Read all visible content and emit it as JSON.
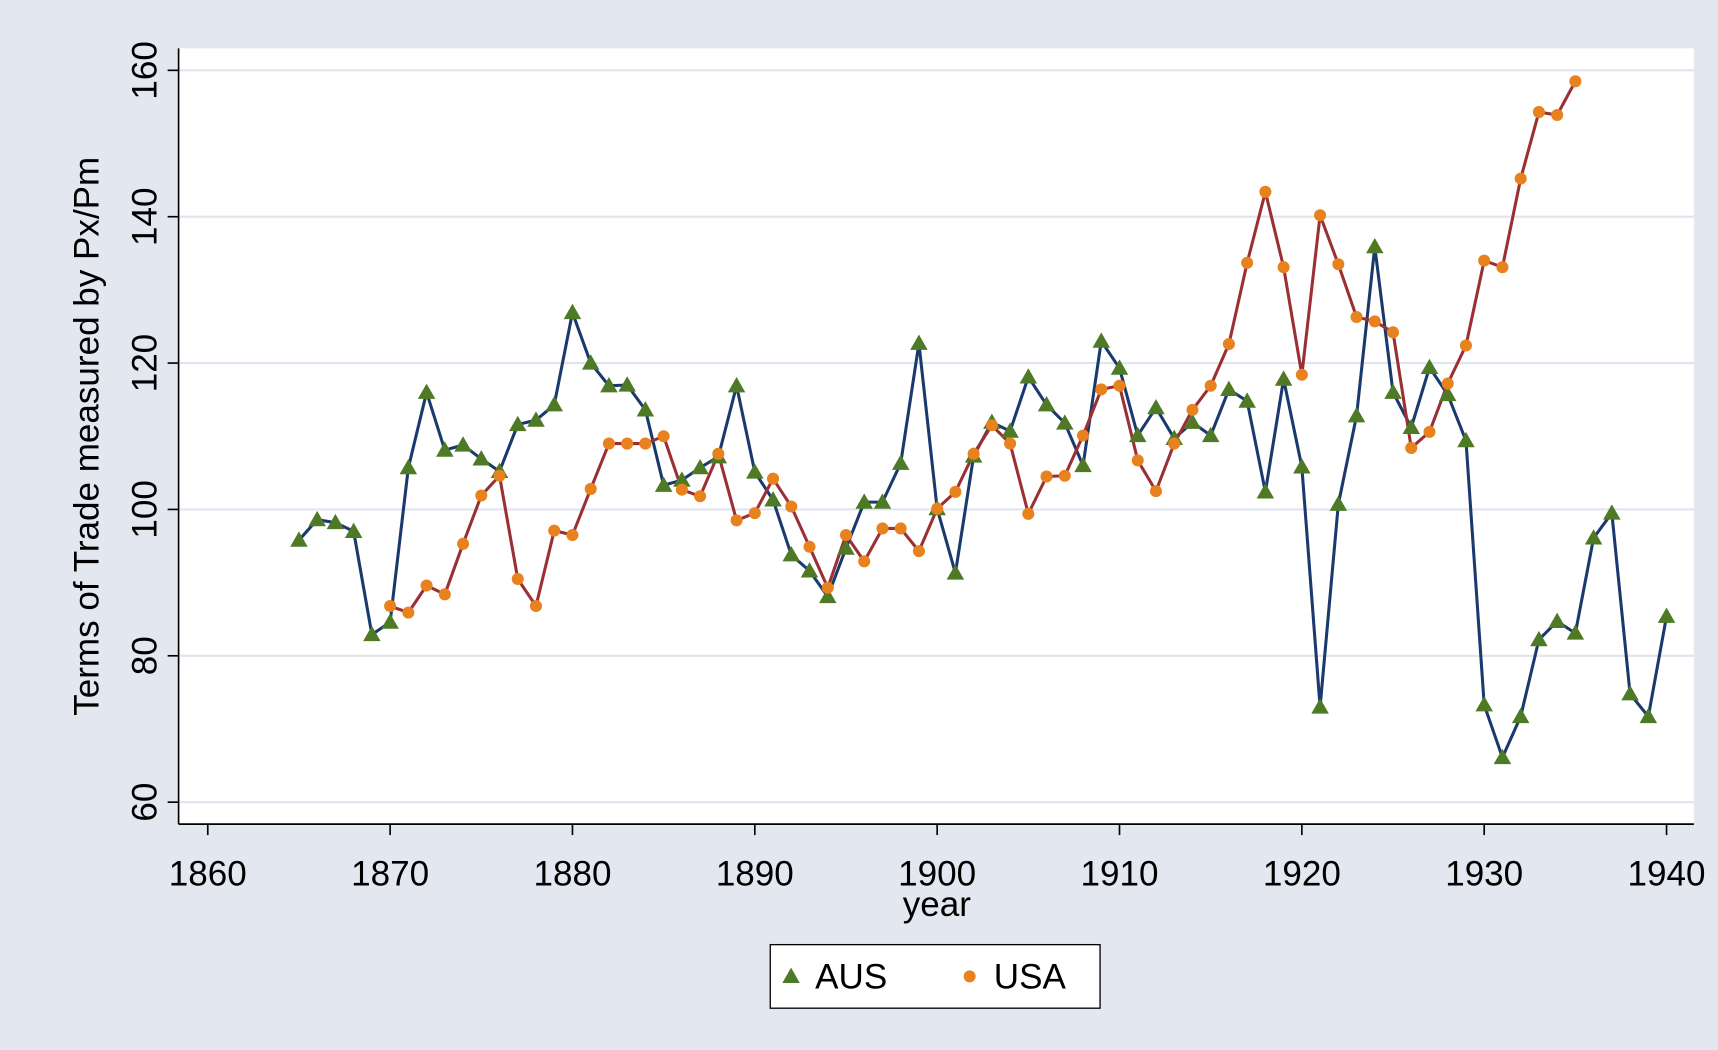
{
  "chart_data": {
    "type": "line",
    "xlabel": "year",
    "ylabel": "Terms of Trade measured by Px/Pm",
    "xlim": [
      1858.4,
      1941.5
    ],
    "ylim": [
      57,
      163
    ],
    "xticks": [
      1860,
      1870,
      1880,
      1890,
      1900,
      1910,
      1920,
      1930,
      1940
    ],
    "yticks": [
      60,
      80,
      100,
      120,
      140,
      160
    ],
    "grid": true,
    "legend": "bottom",
    "series": [
      {
        "name": "AUS",
        "color": "#1a3a6e",
        "marker_color": "#4e7a26",
        "marker": "triangle",
        "x": [
          1865,
          1866,
          1867,
          1868,
          1869,
          1870,
          1871,
          1872,
          1873,
          1874,
          1875,
          1876,
          1877,
          1878,
          1879,
          1880,
          1881,
          1882,
          1883,
          1884,
          1885,
          1886,
          1887,
          1888,
          1889,
          1890,
          1891,
          1892,
          1893,
          1894,
          1895,
          1896,
          1897,
          1898,
          1899,
          1900,
          1901,
          1902,
          1903,
          1904,
          1905,
          1906,
          1907,
          1908,
          1909,
          1910,
          1911,
          1912,
          1913,
          1914,
          1915,
          1916,
          1917,
          1918,
          1919,
          1920,
          1921,
          1922,
          1923,
          1924,
          1925,
          1926,
          1927,
          1928,
          1929,
          1930,
          1931,
          1932,
          1933,
          1934,
          1935,
          1936,
          1937,
          1938,
          1939,
          1940
        ],
        "values": [
          95.8,
          98.6,
          98.2,
          97.0,
          82.9,
          84.6,
          105.7,
          116.0,
          108.1,
          108.8,
          106.9,
          105.2,
          111.6,
          112.2,
          114.3,
          126.9,
          120.0,
          116.9,
          117.0,
          113.6,
          103.3,
          104.0,
          105.7,
          107.2,
          116.9,
          105.1,
          101.3,
          93.8,
          91.6,
          88.1,
          94.7,
          101.0,
          101.0,
          106.3,
          122.7,
          100.1,
          91.3,
          107.3,
          111.9,
          110.7,
          118.1,
          114.3,
          111.8,
          106.0,
          123.0,
          119.3,
          110.1,
          113.9,
          109.7,
          111.9,
          110.1,
          116.4,
          114.8,
          102.4,
          117.8,
          105.8,
          73.0,
          100.7,
          112.8,
          135.9,
          116.0,
          111.2,
          119.4,
          115.7,
          109.4,
          73.3,
          66.1,
          71.7,
          82.2,
          84.7,
          83.1,
          96.1,
          99.5,
          74.8,
          71.7,
          85.4
        ]
      },
      {
        "name": "USA",
        "color": "#9b3034",
        "marker_color": "#e8821e",
        "marker": "circle",
        "x": [
          1870,
          1871,
          1872,
          1873,
          1874,
          1875,
          1876,
          1877,
          1878,
          1879,
          1880,
          1881,
          1882,
          1883,
          1884,
          1885,
          1886,
          1887,
          1888,
          1889,
          1890,
          1891,
          1892,
          1893,
          1894,
          1895,
          1896,
          1897,
          1898,
          1899,
          1900,
          1901,
          1902,
          1903,
          1904,
          1905,
          1906,
          1907,
          1908,
          1909,
          1910,
          1911,
          1912,
          1913,
          1914,
          1915,
          1916,
          1917,
          1918,
          1919,
          1920,
          1921,
          1922,
          1923,
          1924,
          1925,
          1926,
          1927,
          1928,
          1929,
          1930,
          1931,
          1932,
          1933,
          1934,
          1935
        ],
        "values": [
          86.8,
          85.9,
          89.6,
          88.4,
          95.3,
          101.9,
          104.6,
          90.5,
          86.8,
          97.1,
          96.5,
          102.8,
          109.0,
          109.0,
          109.0,
          110.0,
          102.7,
          101.8,
          107.6,
          98.5,
          99.5,
          104.2,
          100.4,
          94.9,
          89.3,
          96.5,
          92.9,
          97.4,
          97.4,
          94.3,
          100.1,
          102.4,
          107.6,
          111.5,
          109.0,
          99.4,
          104.5,
          104.6,
          110.1,
          116.4,
          116.9,
          106.7,
          102.5,
          109.0,
          113.6,
          116.9,
          122.6,
          133.7,
          143.4,
          133.1,
          118.4,
          140.2,
          133.5,
          126.3,
          125.7,
          124.2,
          108.4,
          110.6,
          117.2,
          122.4,
          134.0,
          133.1,
          145.2,
          154.3,
          153.9,
          158.5
        ]
      }
    ]
  }
}
